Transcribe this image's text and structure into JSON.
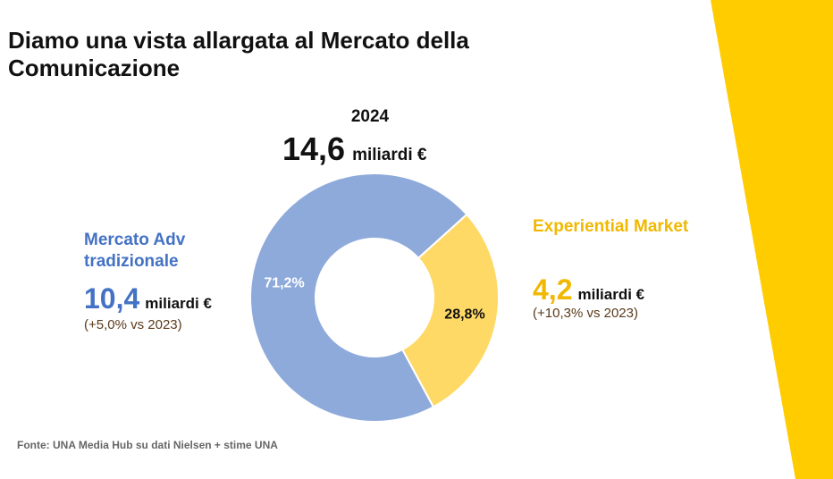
{
  "title": "Diamo una vista allargata al Mercato della Comunicazione",
  "header": {
    "year": "2024",
    "total_value": "14,6",
    "total_unit": "miliardi €"
  },
  "left": {
    "label": "Mercato Adv tradizionale",
    "value": "10,4",
    "unit": "miliardi €",
    "growth": "(+5,0% vs 2023)"
  },
  "right": {
    "label": "Experiential Market",
    "value": "4,2",
    "unit": "miliardi €",
    "growth": "(+10,3% vs 2023)"
  },
  "source": "Fonte: UNA Media Hub su dati Nielsen + stime UNA",
  "colors": {
    "traditional": "#8eaadb",
    "experiential": "#ffd966",
    "accent": "#ffcc00"
  },
  "chart_data": {
    "type": "pie",
    "categories": [
      "Mercato Adv tradizionale",
      "Experiential Market"
    ],
    "values": [
      71.2,
      28.8
    ],
    "value_labels": [
      "71,2%",
      "28,8%"
    ],
    "unit": "%"
  }
}
